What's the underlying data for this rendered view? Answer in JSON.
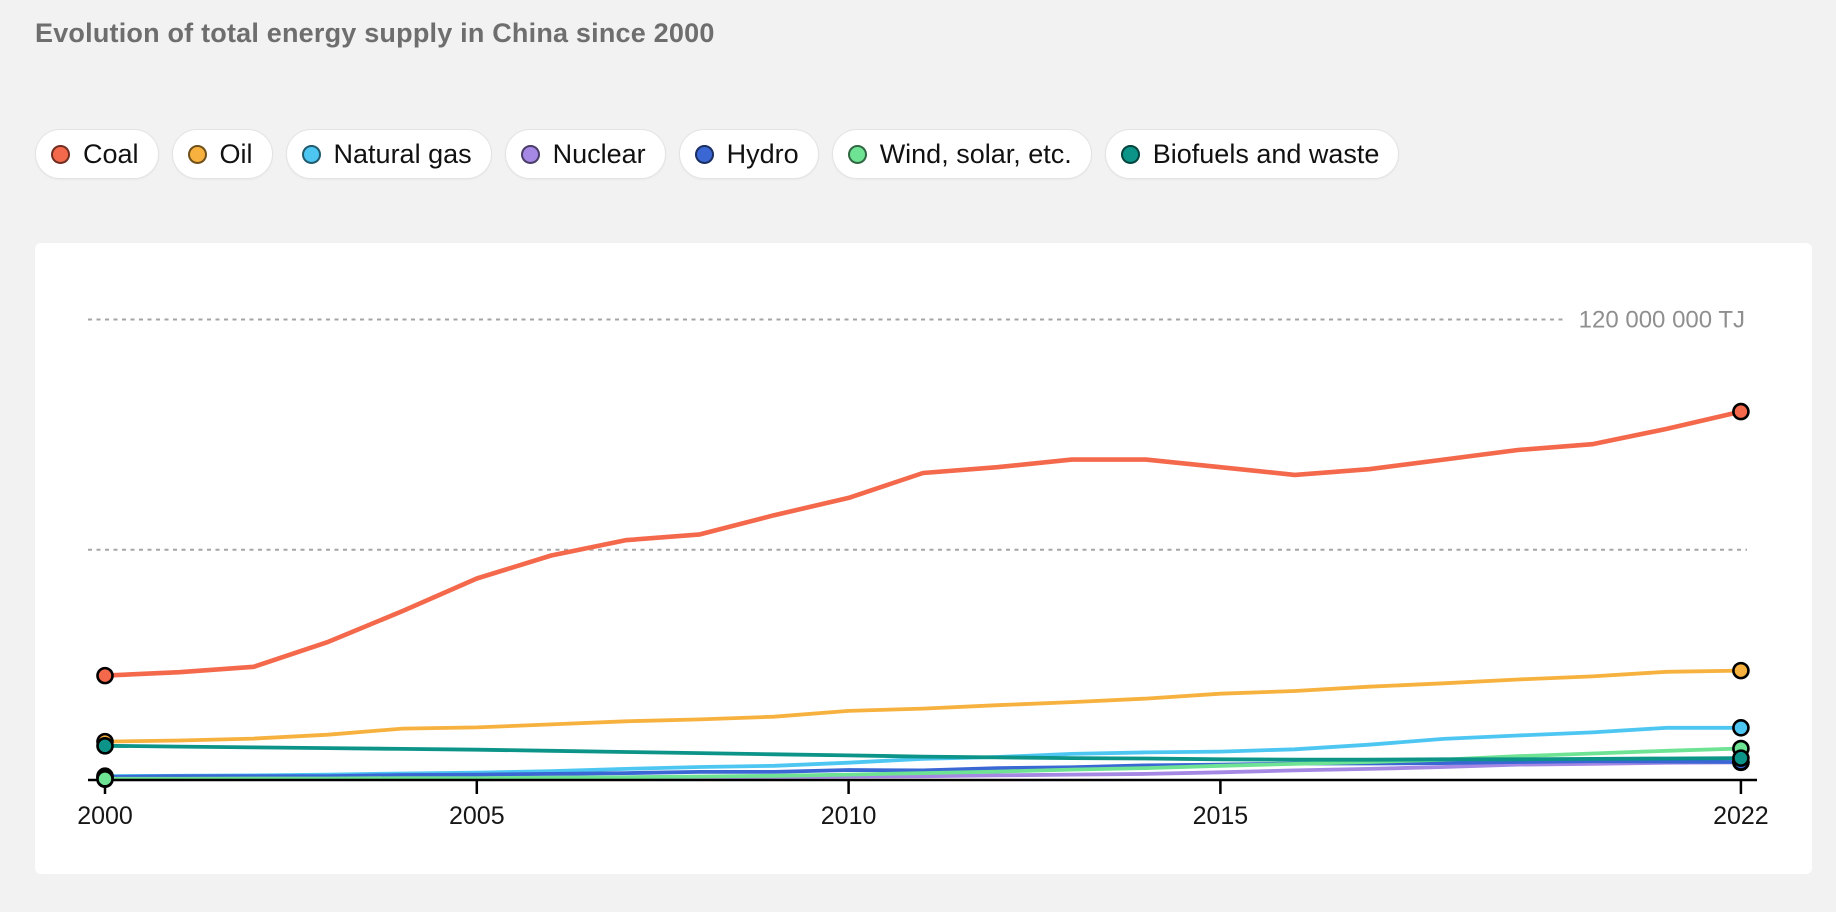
{
  "page": {
    "background_color": "#f2f2f2",
    "card_color": "#ffffff"
  },
  "header": {
    "title": "Evolution of total energy supply in China since 2000"
  },
  "legend": {
    "items": [
      {
        "label": "Coal",
        "color": "#f4694c"
      },
      {
        "label": "Oil",
        "color": "#f6b13e"
      },
      {
        "label": "Natural gas",
        "color": "#4dc7f2"
      },
      {
        "label": "Nuclear",
        "color": "#a588e4"
      },
      {
        "label": "Hydro",
        "color": "#3a67d4"
      },
      {
        "label": "Wind, solar, etc.",
        "color": "#6fe394"
      },
      {
        "label": "Biofuels and waste",
        "color": "#0d9488"
      }
    ]
  },
  "chart_data": {
    "type": "line",
    "title": "Evolution of total energy supply in China since 2000",
    "unit": "TJ",
    "xlabel": "",
    "ylabel": "TJ",
    "x": [
      2000,
      2001,
      2002,
      2003,
      2004,
      2005,
      2006,
      2007,
      2008,
      2009,
      2010,
      2011,
      2012,
      2013,
      2014,
      2015,
      2016,
      2017,
      2018,
      2019,
      2020,
      2021,
      2022
    ],
    "x_ticks": [
      {
        "year": 2000,
        "label": "2000"
      },
      {
        "year": 2005,
        "label": "2005"
      },
      {
        "year": 2010,
        "label": "2010"
      },
      {
        "year": 2015,
        "label": "2015"
      },
      {
        "year": 2022,
        "label": "2022"
      }
    ],
    "xlim": [
      2000,
      2022
    ],
    "ylim": [
      0,
      130000000
    ],
    "grid": "horizontal-dotted",
    "gridlines": [
      {
        "value": 60000000,
        "label": ""
      },
      {
        "value": 120000000,
        "label": "120 000 000 TJ"
      }
    ],
    "legend_position": "top",
    "series": [
      {
        "name": "Coal",
        "color": "#f4694c",
        "values": [
          27200000,
          28100000,
          29500000,
          36000000,
          44000000,
          52500000,
          58500000,
          62500000,
          64000000,
          69000000,
          73500000,
          80000000,
          81500000,
          83500000,
          83500000,
          81500000,
          79500000,
          81000000,
          83500000,
          86000000,
          87500000,
          91500000,
          96000000
        ]
      },
      {
        "name": "Oil",
        "color": "#f6b13e",
        "values": [
          10000000,
          10300000,
          10800000,
          11800000,
          13400000,
          13700000,
          14500000,
          15300000,
          15800000,
          16500000,
          18000000,
          18600000,
          19500000,
          20300000,
          21200000,
          22500000,
          23200000,
          24300000,
          25200000,
          26200000,
          27000000,
          28200000,
          28500000
        ]
      },
      {
        "name": "Natural gas",
        "color": "#4dc7f2",
        "values": [
          1000000,
          1100000,
          1200000,
          1400000,
          1700000,
          1900000,
          2300000,
          2900000,
          3400000,
          3700000,
          4500000,
          5500000,
          6000000,
          6800000,
          7200000,
          7400000,
          8000000,
          9200000,
          10700000,
          11600000,
          12400000,
          13600000,
          13600000
        ]
      },
      {
        "name": "Nuclear",
        "color": "#a588e4",
        "values": [
          200000,
          200000,
          300000,
          500000,
          600000,
          600000,
          600000,
          700000,
          800000,
          800000,
          900000,
          1000000,
          1200000,
          1400000,
          1600000,
          2000000,
          2500000,
          2900000,
          3400000,
          4000000,
          4200000,
          4500000,
          4600000
        ]
      },
      {
        "name": "Hydro",
        "color": "#3a67d4",
        "values": [
          800000,
          1000000,
          1000000,
          1000000,
          1300000,
          1400000,
          1600000,
          1800000,
          2100000,
          2100000,
          2600000,
          2500000,
          3100000,
          3300000,
          3800000,
          4000000,
          4300000,
          4300000,
          4400000,
          4700000,
          4900000,
          4800000,
          4700000
        ]
      },
      {
        "name": "Wind, solar, etc.",
        "color": "#6fe394",
        "values": [
          300000,
          300000,
          400000,
          400000,
          500000,
          500000,
          600000,
          700000,
          900000,
          1100000,
          1400000,
          1800000,
          2200000,
          2700000,
          3100000,
          3700000,
          4200000,
          4700000,
          5300000,
          6200000,
          6900000,
          7600000,
          8200000
        ]
      },
      {
        "name": "Biofuels and waste",
        "color": "#0d9488",
        "values": [
          8900000,
          8700000,
          8500000,
          8300000,
          8100000,
          7900000,
          7600000,
          7300000,
          7000000,
          6700000,
          6400000,
          6100000,
          5900000,
          5700000,
          5600000,
          5400000,
          5300000,
          5300000,
          5400000,
          5400000,
          5500000,
          5600000,
          5700000
        ]
      }
    ],
    "draw_order": [
      1,
      3,
      2,
      4,
      5,
      6,
      0
    ],
    "endpoint_markers": true,
    "styles": {
      "axis_color": "#000000",
      "gridline_color": "#a5a5a5",
      "tick_label_color": "#161616",
      "unit_label_color": "#8f8f8f"
    }
  }
}
